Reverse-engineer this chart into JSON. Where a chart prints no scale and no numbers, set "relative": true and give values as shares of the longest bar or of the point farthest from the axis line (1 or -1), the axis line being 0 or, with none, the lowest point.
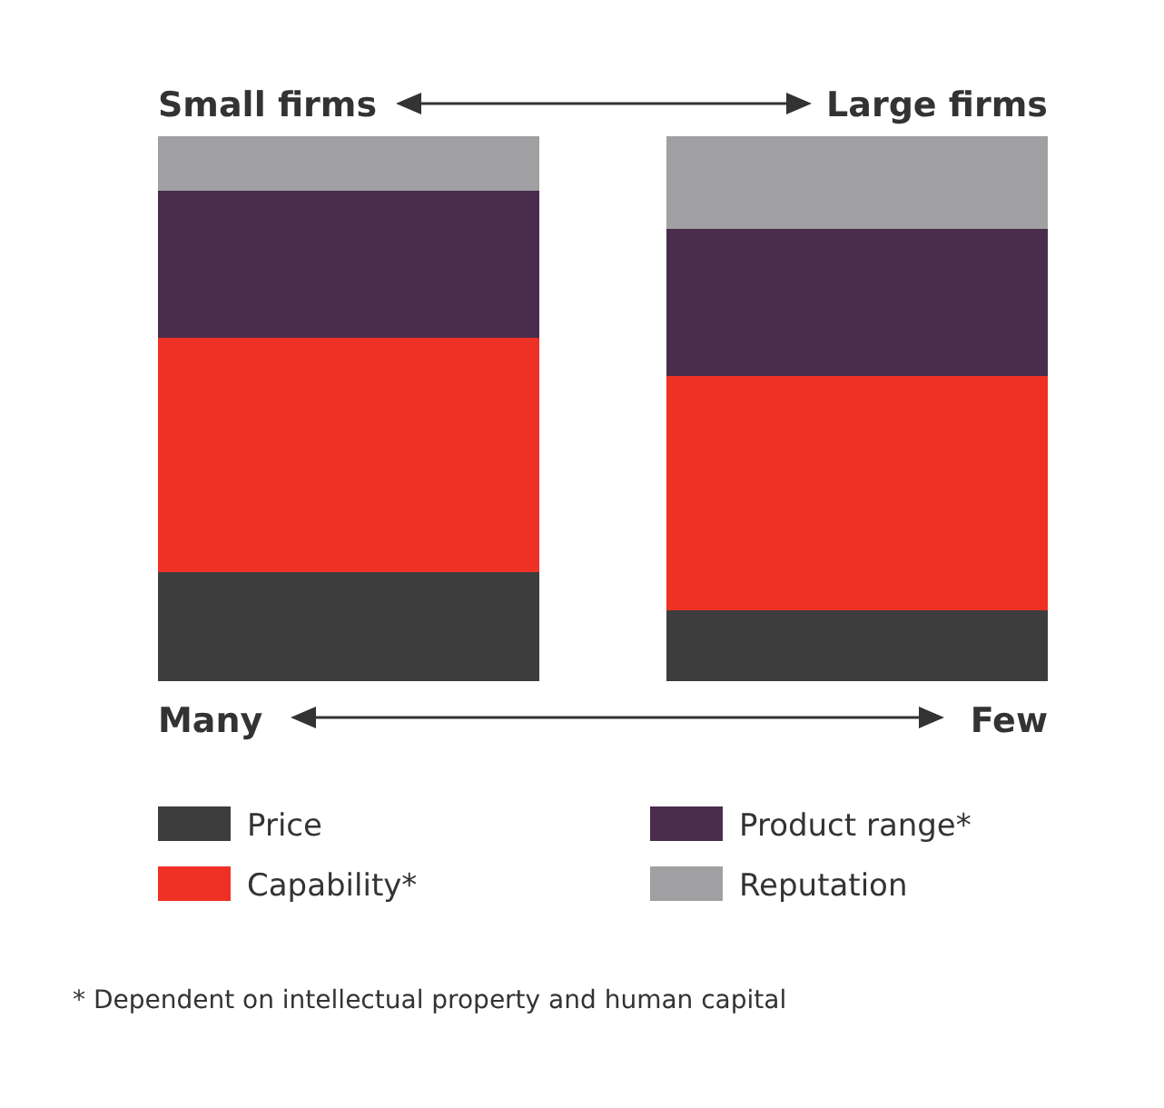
{
  "chart_data": {
    "type": "bar",
    "stacked": true,
    "relative": true,
    "categories": [
      "Small firms",
      "Large firms"
    ],
    "series": [
      {
        "name": "Price",
        "color": "#3d3d3d",
        "values": [
          0.2,
          0.13
        ]
      },
      {
        "name": "Capability*",
        "color": "#ee3124",
        "values": [
          0.43,
          0.43
        ]
      },
      {
        "name": "Product range*",
        "color": "#4a2c4d",
        "values": [
          0.27,
          0.27
        ]
      },
      {
        "name": "Reputation",
        "color": "#a0a0a3",
        "values": [
          0.1,
          0.17
        ]
      }
    ],
    "annotations": [
      "Many",
      "Few",
      "* Dependent on intellectual property and human capital"
    ],
    "legend": "bottom"
  }
}
